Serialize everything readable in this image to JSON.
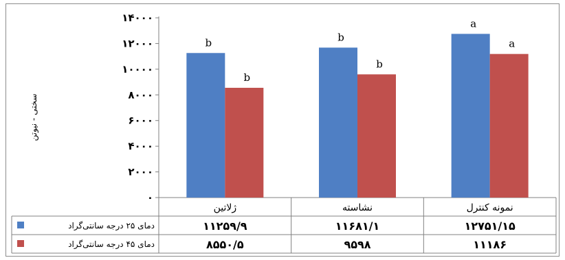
{
  "chart_data": {
    "type": "bar",
    "ylabel": "سختی - نیوتن",
    "ylim": [
      0,
      14000
    ],
    "yticks": [
      "٠",
      "٢٠٠٠",
      "۴٠٠٠",
      "۶٠٠٠",
      "٨٠٠٠",
      "١٠٠٠٠",
      "١٢٠٠٠",
      "١۴٠٠٠"
    ],
    "ytick_values": [
      0,
      2000,
      4000,
      6000,
      8000,
      10000,
      12000,
      14000
    ],
    "categories": [
      "ژلاتین",
      "نشاسته",
      "نمونه کنترل"
    ],
    "series": [
      {
        "name": "دمای ۲۵ درجه سانتی‌گراد",
        "color": "#4f7fc4",
        "values": [
          11259.9,
          11681.1,
          12751.15
        ],
        "table_values": [
          "١١٢۵٩/٩",
          "١١۶٨١/١",
          "١٢٧۵١/١۵"
        ],
        "letters": [
          "b",
          "b",
          "a"
        ]
      },
      {
        "name": "دمای ۴۵ درجه سانتی‌گراد",
        "color": "#c0504d",
        "values": [
          8550.5,
          9598,
          11186
        ],
        "table_values": [
          "٨۵۵٠/۵",
          "٩۵٩٨",
          "١١١٨۶"
        ],
        "letters": [
          "b",
          "b",
          "a"
        ]
      }
    ],
    "grid": false,
    "legend": "data table"
  }
}
